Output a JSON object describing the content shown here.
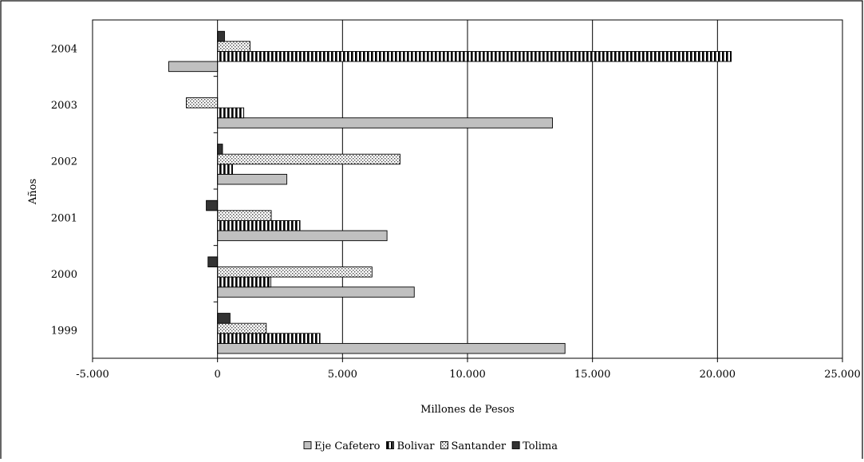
{
  "chart_data": {
    "type": "bar",
    "orientation": "horizontal",
    "title": "",
    "xlabel": "Millones de Pesos",
    "ylabel": "Años",
    "categories": [
      "1999",
      "2000",
      "2001",
      "2002",
      "2003",
      "2004"
    ],
    "xlim": [
      -5000,
      25000
    ],
    "x_ticks": [
      -5000,
      0,
      5000,
      10000,
      15000,
      20000,
      25000
    ],
    "x_tick_labels": [
      "-5.000",
      "0",
      "5.000",
      "10.000",
      "15.000",
      "20.000",
      "25.000"
    ],
    "grid": "vertical major gridlines",
    "legend_position": "bottom",
    "series": [
      {
        "name": "Eje Cafetero",
        "values": [
          13900,
          7870,
          6780,
          2770,
          13400,
          -1950
        ],
        "color": "#c0c0c0",
        "pattern": "solid"
      },
      {
        "name": "Bolivar",
        "values": [
          4100,
          2130,
          3300,
          600,
          1050,
          20550
        ],
        "color": "#000000",
        "pattern": "vertical-stripes"
      },
      {
        "name": "Santander",
        "values": [
          1950,
          6180,
          2150,
          7300,
          -1250,
          1300
        ],
        "color": "#c0c0c0",
        "pattern": "dots"
      },
      {
        "name": "Tolima",
        "values": [
          500,
          -380,
          -450,
          200,
          0,
          280
        ],
        "color": "#333333",
        "pattern": "solid"
      }
    ]
  }
}
